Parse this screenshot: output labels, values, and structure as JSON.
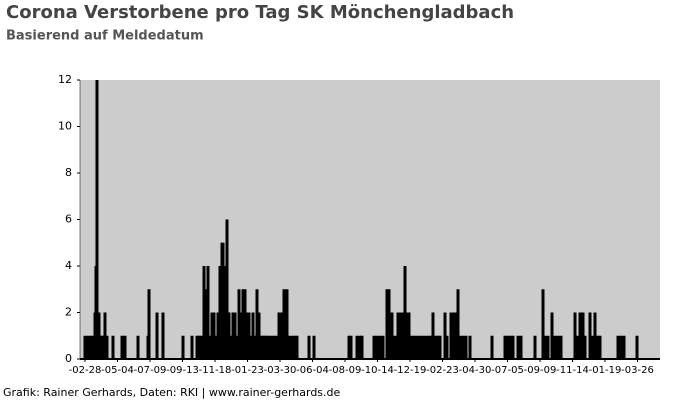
{
  "chart_data": {
    "type": "bar",
    "title": "Corona Verstorbene pro Tag SK Mönchengladbach",
    "subtitle": "Basierend auf Meldedatum",
    "footer": "Grafik: Rainer Gerhards, Daten: RKI | www.rainer-gerhards.de",
    "color": "#000000",
    "background": "#cccccc",
    "x": [
      0,
      6,
      12,
      16,
      20,
      22,
      24,
      26,
      28,
      30,
      32,
      36,
      40,
      44,
      56,
      74,
      80,
      106,
      126,
      128,
      144,
      156,
      196,
      214,
      224,
      228,
      232,
      238,
      244,
      246,
      250,
      254,
      258,
      262,
      266,
      270,
      274,
      276,
      280,
      284,
      288,
      292,
      296,
      300,
      304,
      308,
      312,
      316,
      320,
      324,
      328,
      332,
      336,
      340,
      344,
      348,
      352,
      356,
      360,
      364,
      370,
      376,
      382,
      388,
      392,
      398,
      404,
      408,
      414,
      420,
      424,
      448,
      458,
      528,
      532,
      544,
      550,
      554,
      578,
      584,
      590,
      596,
      604,
      608,
      614,
      620,
      626,
      630,
      636,
      640,
      644,
      648,
      652,
      658,
      664,
      670,
      676,
      682,
      688,
      692,
      696,
      702,
      706,
      710,
      720,
      724,
      732,
      736,
      740,
      746,
      750,
      756,
      762,
      770,
      814,
      840,
      844,
      850,
      856,
      866,
      872,
      900,
      916,
      920,
      926,
      934,
      940,
      946,
      952,
      980,
      984,
      990,
      996,
      1000,
      1010,
      1016,
      1020,
      1026,
      1030,
      1066,
      1072,
      1078,
      1104
    ],
    "values": [
      1,
      1,
      1,
      1,
      2,
      4,
      12,
      1,
      2,
      1,
      1,
      1,
      2,
      1,
      1,
      1,
      1,
      1,
      1,
      3,
      2,
      2,
      1,
      1,
      1,
      1,
      1,
      4,
      3,
      4,
      1,
      2,
      2,
      1,
      2,
      4,
      5,
      5,
      4,
      6,
      2,
      1,
      2,
      2,
      1,
      3,
      2,
      3,
      3,
      2,
      2,
      1,
      2,
      1,
      3,
      2,
      1,
      1,
      1,
      1,
      1,
      1,
      1,
      2,
      2,
      3,
      3,
      1,
      1,
      1,
      1,
      1,
      1,
      1,
      1,
      1,
      1,
      1,
      1,
      1,
      1,
      1,
      3,
      3,
      2,
      1,
      2,
      2,
      2,
      4,
      2,
      2,
      1,
      1,
      1,
      1,
      1,
      1,
      1,
      1,
      2,
      1,
      1,
      1,
      2,
      1,
      2,
      2,
      2,
      3,
      1,
      1,
      1,
      1,
      1,
      1,
      1,
      1,
      1,
      1,
      1,
      1,
      3,
      1,
      1,
      2,
      1,
      1,
      1,
      2,
      1,
      2,
      2,
      1,
      2,
      1,
      2,
      1,
      1,
      1,
      1,
      1,
      1
    ],
    "xlim": [
      -10,
      1150
    ],
    "xticks": [
      {
        "value": 0,
        "label": "-02-28"
      },
      {
        "value": 65,
        "label": "-05-04"
      },
      {
        "value": 130,
        "label": "-07-09"
      },
      {
        "value": 195,
        "label": "-09-13"
      },
      {
        "value": 260,
        "label": "-11-18"
      },
      {
        "value": 325,
        "label": "-01-23"
      },
      {
        "value": 390,
        "label": "-03-30"
      },
      {
        "value": 455,
        "label": "-06-04"
      },
      {
        "value": 520,
        "label": "-08-09"
      },
      {
        "value": 585,
        "label": "-10-14"
      },
      {
        "value": 650,
        "label": "-12-19"
      },
      {
        "value": 715,
        "label": "-02-23"
      },
      {
        "value": 780,
        "label": "-04-30"
      },
      {
        "value": 845,
        "label": "-07-05"
      },
      {
        "value": 910,
        "label": "-09-09"
      },
      {
        "value": 975,
        "label": "-11-14"
      },
      {
        "value": 1040,
        "label": "-01-19"
      },
      {
        "value": 1105,
        "label": "-03-26"
      }
    ],
    "ylim": [
      0,
      12
    ],
    "yticks": [
      0,
      2,
      4,
      6,
      8,
      10,
      12
    ],
    "grid": false
  }
}
